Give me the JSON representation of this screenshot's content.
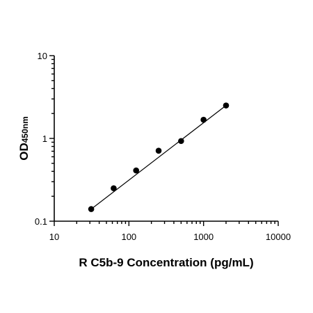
{
  "chart_data": {
    "type": "scatter",
    "title": "",
    "xlabel": "R C5b-9 Concentration (pg/mL)",
    "ylabel_main": "OD",
    "ylabel_sub": "450nm",
    "x_scale": "log",
    "y_scale": "log",
    "xlim": [
      10,
      10000
    ],
    "ylim": [
      0.1,
      10
    ],
    "x_ticks": [
      10,
      100,
      1000,
      10000
    ],
    "x_tick_labels": [
      "10",
      "100",
      "1000",
      "10000"
    ],
    "y_ticks": [
      0.1,
      1,
      10
    ],
    "y_tick_labels": [
      "0.1",
      "1",
      "10"
    ],
    "grid": false,
    "series": [
      {
        "x": [
          31.25,
          62.5,
          125,
          250,
          500,
          1000,
          2000
        ],
        "y": [
          0.14,
          0.25,
          0.41,
          0.71,
          0.93,
          1.68,
          2.5
        ]
      }
    ],
    "fit_line": {
      "x": [
        31.25,
        2000
      ],
      "y": [
        0.14,
        2.5
      ]
    }
  }
}
